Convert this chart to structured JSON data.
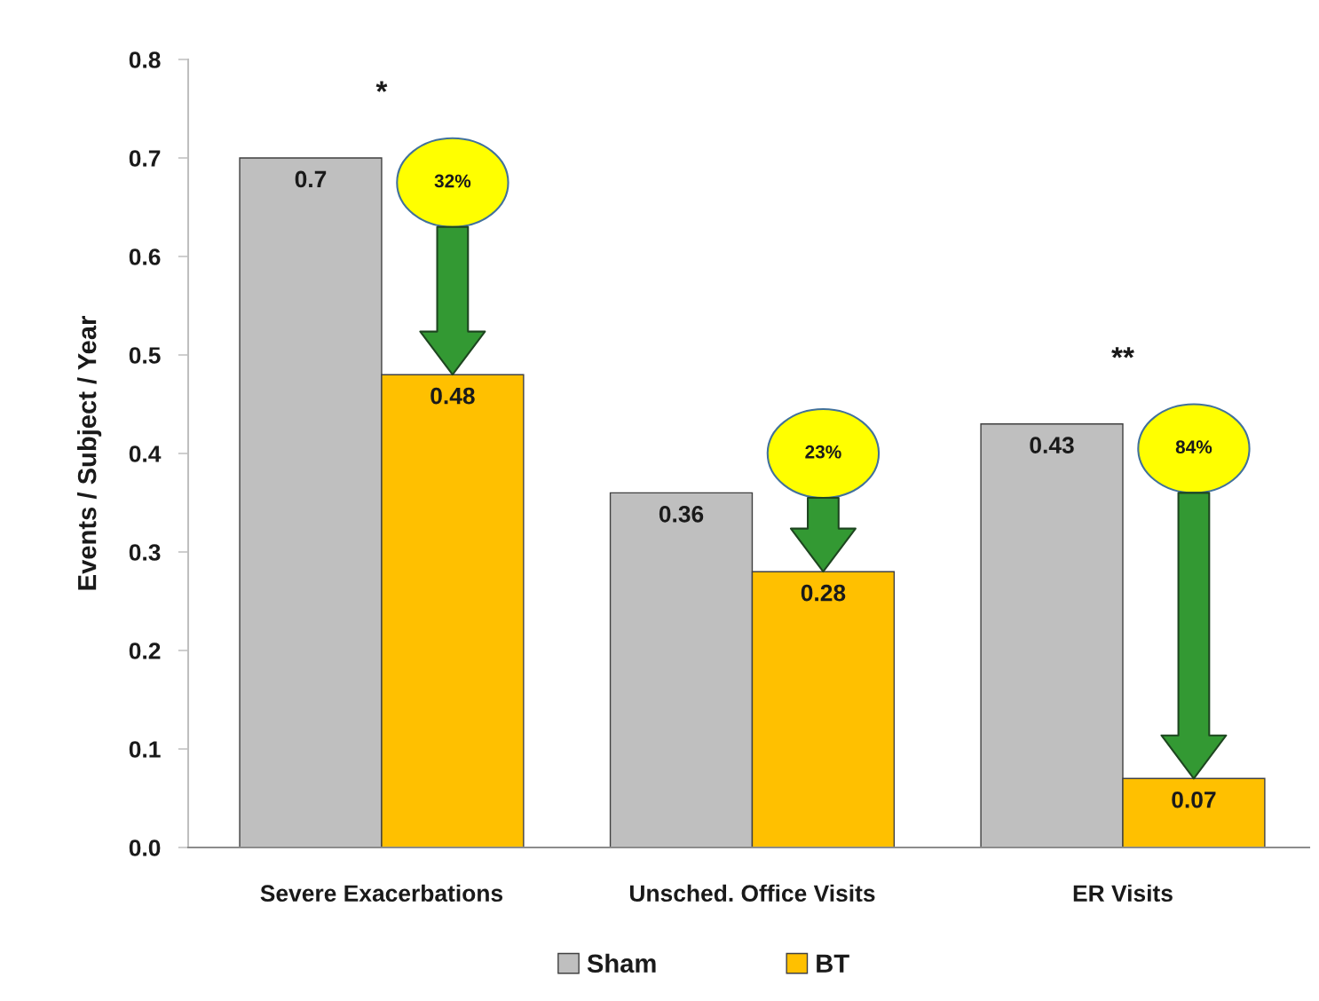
{
  "chart_data": {
    "type": "bar",
    "ylabel": "Events / Subject / Year",
    "categories": [
      "Severe Exacerbations",
      "Unsched. Office Visits",
      "ER Visits"
    ],
    "series": [
      {
        "name": "Sham",
        "color": "#bfbfbf",
        "values": [
          0.7,
          0.36,
          0.43
        ]
      },
      {
        "name": "BT",
        "color": "#ffc000",
        "values": [
          0.48,
          0.28,
          0.07
        ]
      }
    ],
    "ylim": [
      0,
      0.8
    ],
    "yticks": [
      {
        "value": 0,
        "label": "0.0"
      },
      0.1,
      0.2,
      0.3,
      0.4,
      0.5,
      0.6,
      0.7,
      0.8
    ],
    "data_labels": true,
    "grid": false,
    "legend": "bottom",
    "annotations": [
      "*",
      "**",
      "32%",
      "23%",
      "84%"
    ]
  }
}
